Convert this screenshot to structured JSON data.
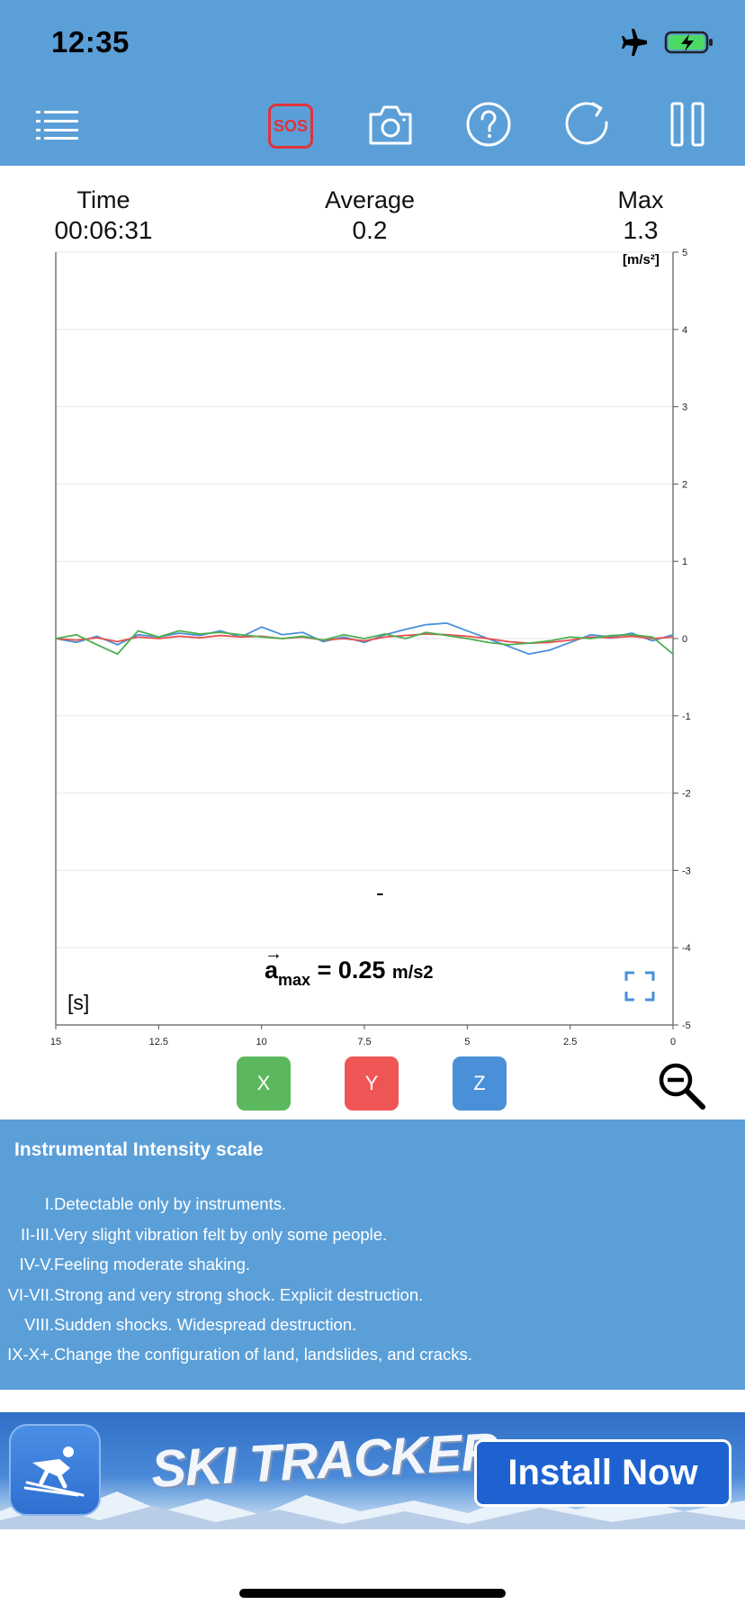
{
  "status_bar": {
    "time": "12:35"
  },
  "toolbar": {
    "menu_icon": "list-icon",
    "sos_label": "SOS",
    "camera_icon": "camera-icon",
    "help_icon": "question-circle-icon",
    "refresh_icon": "refresh-icon",
    "pause_icon": "pause-icon",
    "accent_color": "#5B9FD8",
    "sos_color": "#E0333B"
  },
  "stats": {
    "time": {
      "label": "Time",
      "value": "00:06:31"
    },
    "average": {
      "label": "Average",
      "value": "0.2"
    },
    "max": {
      "label": "Max",
      "value": "1.3"
    }
  },
  "chart_data": {
    "type": "line",
    "ylabel": "[m/s²]",
    "xlabel": "[s]",
    "ylim": [
      -5,
      5
    ],
    "xlim": [
      15,
      0
    ],
    "y_ticks": [
      "5",
      "4",
      "3",
      "2",
      "1",
      "0",
      "-1",
      "-2",
      "-3",
      "-4",
      "-5"
    ],
    "x_ticks": [
      "15",
      "12.5",
      "10",
      "7.5",
      "5",
      "2.5",
      "0"
    ],
    "annotation_dash": "-",
    "amax": {
      "symbol": "a",
      "subscript": "max",
      "value": "= 0.25",
      "unit": "m/s2"
    },
    "grid": true,
    "series": [
      {
        "name": "Z",
        "color": "#4A90D9",
        "x": [
          15,
          14.5,
          14,
          13.5,
          13,
          12.5,
          12,
          11.5,
          11,
          10.5,
          10,
          9.5,
          9,
          8.5,
          8,
          7.5,
          7,
          6.5,
          6,
          5.5,
          5,
          4.5,
          4,
          3.5,
          3,
          2.5,
          2,
          1.5,
          1,
          0.5,
          0
        ],
        "values": [
          0.0,
          -0.05,
          0.03,
          -0.08,
          0.05,
          0.02,
          0.07,
          0.04,
          0.1,
          0.02,
          0.15,
          0.05,
          0.08,
          -0.04,
          0.02,
          -0.05,
          0.05,
          0.12,
          0.18,
          0.2,
          0.1,
          0.0,
          -0.1,
          -0.2,
          -0.15,
          -0.05,
          0.05,
          0.02,
          0.07,
          -0.03,
          0.05
        ]
      },
      {
        "name": "Y",
        "color": "#E85050",
        "x": [
          15,
          14.5,
          14,
          13.5,
          13,
          12.5,
          12,
          11.5,
          11,
          10.5,
          10,
          9.5,
          9,
          8.5,
          8,
          7.5,
          7,
          6.5,
          6,
          5.5,
          5,
          4.5,
          4,
          3.5,
          3,
          2.5,
          2,
          1.5,
          1,
          0.5,
          0
        ],
        "values": [
          0.0,
          -0.02,
          0.01,
          -0.04,
          0.02,
          0.0,
          0.03,
          0.01,
          0.04,
          0.02,
          0.03,
          0.0,
          0.02,
          -0.02,
          0.0,
          -0.03,
          0.02,
          0.04,
          0.06,
          0.05,
          0.03,
          0.0,
          -0.04,
          -0.06,
          -0.05,
          -0.02,
          0.02,
          0.01,
          0.03,
          0.0,
          0.02
        ]
      },
      {
        "name": "X",
        "color": "#4CAF50",
        "x": [
          15,
          14.5,
          14,
          13.5,
          13,
          12.5,
          12,
          11.5,
          11,
          10.5,
          10,
          9.5,
          9,
          8.5,
          8,
          7.5,
          7,
          6.5,
          6,
          5.5,
          5,
          4.5,
          4,
          3.5,
          3,
          2.5,
          2,
          1.5,
          1,
          0.5,
          0
        ],
        "values": [
          0.0,
          0.05,
          -0.08,
          -0.2,
          0.1,
          0.02,
          0.1,
          0.06,
          0.08,
          0.05,
          0.02,
          0.0,
          0.03,
          -0.02,
          0.05,
          0.0,
          0.06,
          0.0,
          0.08,
          0.04,
          0.0,
          -0.05,
          -0.08,
          -0.06,
          -0.03,
          0.02,
          0.0,
          0.04,
          0.05,
          0.02,
          -0.2
        ]
      }
    ]
  },
  "axis_buttons": [
    {
      "label": "X",
      "color": "#5CB85C"
    },
    {
      "label": "Y",
      "color": "#F05555"
    },
    {
      "label": "Z",
      "color": "#4A90D9"
    }
  ],
  "zoom_icon": "zoom-out-icon",
  "expand_icon": "expand-icon",
  "intensity_scale": {
    "title": "Instrumental Intensity scale",
    "items": [
      {
        "level": "I.",
        "text": "Detectable only by instruments."
      },
      {
        "level": "II-III.",
        "text": "Very slight vibration felt by only some people."
      },
      {
        "level": "IV-V.",
        "text": "Feeling moderate shaking."
      },
      {
        "level": "VI-VII.",
        "text": "Strong and very strong shock. Explicit destruction."
      },
      {
        "level": "VIII.",
        "text": "Sudden shocks. Widespread destruction."
      },
      {
        "level": "IX-X+.",
        "text": "Change the configuration of land, landslides, and cracks."
      }
    ]
  },
  "ad": {
    "brand": "SKI TRACKER",
    "cta": "Install Now",
    "app_icon": "skier-icon"
  }
}
